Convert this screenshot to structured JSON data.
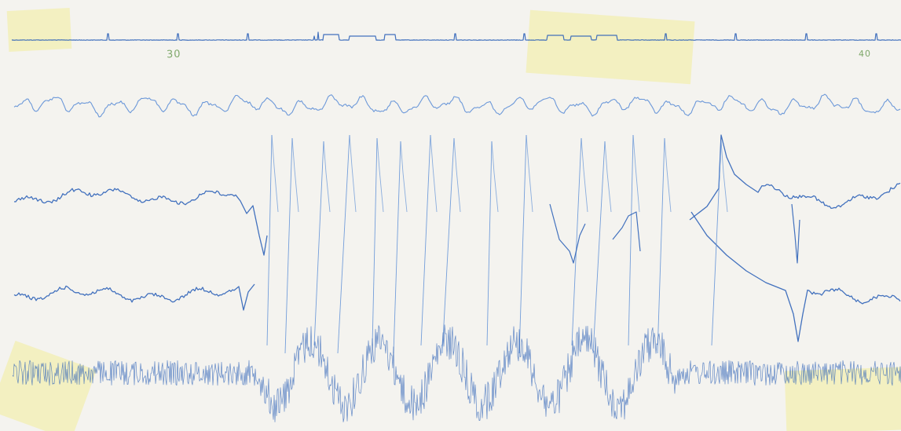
{
  "recording": {
    "time_markers": [
      "30",
      "40"
    ]
  },
  "colors": {
    "paper": "#f4f3ef",
    "ink_dark": "#2f63b8",
    "ink_light": "#5d8ed6",
    "pencil": "#7fa86a",
    "tape": "#f3ec9a"
  },
  "channels": [
    {
      "id": "timing-and-stimulus-marker"
    },
    {
      "id": "trace-1"
    },
    {
      "id": "trace-2"
    },
    {
      "id": "trace-3"
    },
    {
      "id": "trace-4"
    }
  ]
}
